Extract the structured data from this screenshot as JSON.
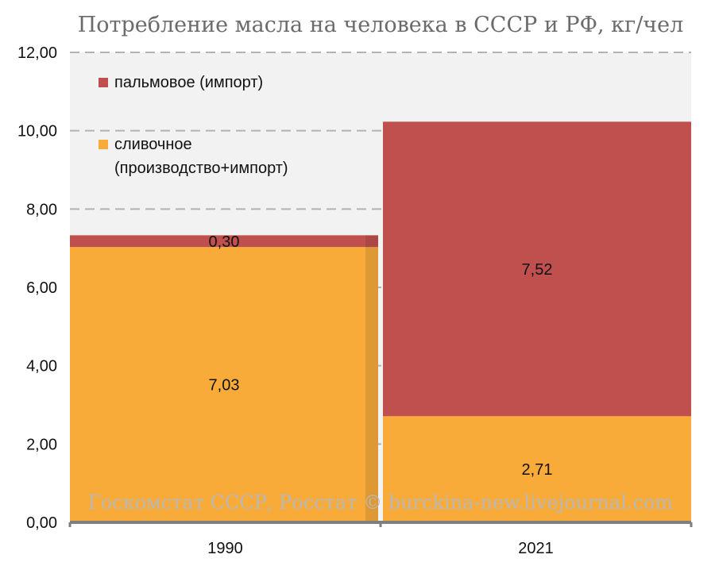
{
  "chart_data": {
    "type": "bar",
    "stacked": true,
    "title": "Потребление масла на человека в СССР и РФ, кг/чел",
    "categories": [
      "1990",
      "2021"
    ],
    "series": [
      {
        "name": "сливочное (производство+импорт)",
        "values": [
          7.03,
          2.71
        ],
        "labels": [
          "7,03",
          "2,71"
        ],
        "color": "#f9ab3a"
      },
      {
        "name": "пальмовое (импорт)",
        "values": [
          0.3,
          7.52
        ],
        "labels": [
          "0,30",
          "7,52"
        ],
        "color": "#c0504d"
      }
    ],
    "legend": [
      {
        "lines": [
          "пальмовое (импорт)"
        ],
        "color": "#c0504d"
      },
      {
        "lines": [
          "сливочное",
          "(производство+импорт)"
        ],
        "color": "#f9ab3a"
      }
    ],
    "legend_position": "top-left",
    "ylim": [
      0,
      12
    ],
    "yticks": [
      0,
      2,
      4,
      6,
      8,
      10,
      12
    ],
    "ytick_labels": [
      "0,00",
      "2,00",
      "4,00",
      "6,00",
      "8,00",
      "10,00",
      "12,00"
    ],
    "grid": "dashed horizontal",
    "plot_background": "#f2f2f2",
    "source": "Госкомстат СССР, Росстат © burckina-new.livejournal.com"
  }
}
